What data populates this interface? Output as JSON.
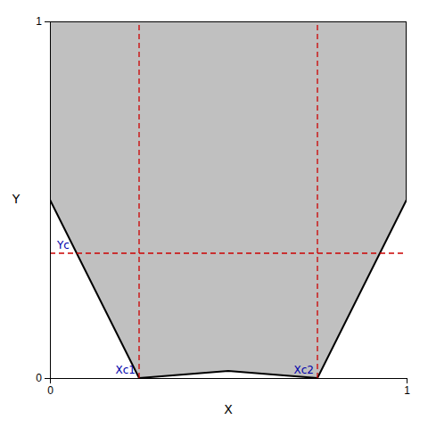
{
  "chart_data": {
    "type": "area",
    "xlabel": "X",
    "ylabel": "Y",
    "xlim": [
      0,
      1
    ],
    "ylim": [
      0,
      1
    ],
    "xticks": [
      0,
      1
    ],
    "yticks": [
      0,
      1
    ],
    "grid": false,
    "series": [
      {
        "type": "area",
        "color": "#c0c0c0",
        "x": [
          0,
          0,
          0.25,
          0.5,
          0.75,
          1,
          1,
          0
        ],
        "values": [
          1,
          0.5,
          0,
          0.02,
          0,
          0.5,
          1,
          1
        ]
      },
      {
        "type": "line",
        "color": "#cc0000",
        "line_style": "dashed",
        "x": [
          0.25,
          0.25
        ],
        "values": [
          0,
          1
        ]
      },
      {
        "type": "line",
        "color": "#cc0000",
        "line_style": "dashed",
        "x": [
          0.75,
          0.75
        ],
        "values": [
          0,
          1
        ]
      },
      {
        "type": "line",
        "color": "#cc0000",
        "line_style": "dashed",
        "x": [
          0,
          1
        ],
        "values": [
          0.35,
          0.35
        ]
      }
    ],
    "annotations": [
      {
        "text": "Yc",
        "x": 0,
        "y": 0.35,
        "color": "#0000aa"
      },
      {
        "text": "Xc1",
        "x": 0.25,
        "y": 0,
        "color": "#0000aa"
      },
      {
        "text": "Xc2",
        "x": 0.75,
        "y": 0,
        "color": "#0000aa"
      }
    ]
  }
}
